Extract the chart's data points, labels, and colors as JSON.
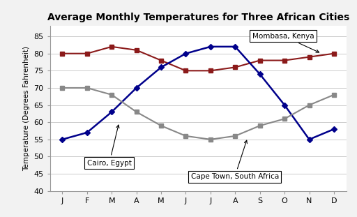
{
  "title": "Average Monthly Temperatures for Three African Cities",
  "months": [
    "J",
    "F",
    "M",
    "A",
    "M",
    "J",
    "J",
    "A",
    "S",
    "O",
    "N",
    "D"
  ],
  "mombasa": [
    80,
    80,
    82,
    81,
    78,
    75,
    75,
    76,
    78,
    78,
    79,
    80
  ],
  "cairo": [
    55,
    57,
    63,
    70,
    76,
    80,
    82,
    82,
    74,
    65,
    55,
    58
  ],
  "capetown": [
    70,
    70,
    68,
    63,
    59,
    56,
    55,
    56,
    59,
    61,
    65,
    68
  ],
  "mombasa_color": "#8B1A1A",
  "cairo_color": "#00008B",
  "capetown_color": "#888888",
  "ylabel": "Temperature (Degrees Fahrenheit)",
  "ylim": [
    40,
    88
  ],
  "yticks": [
    40,
    45,
    50,
    55,
    60,
    65,
    70,
    75,
    80,
    85
  ],
  "bg_color": "#f2f2f2",
  "plot_bg_color": "#ffffff",
  "border_color": "#999999"
}
